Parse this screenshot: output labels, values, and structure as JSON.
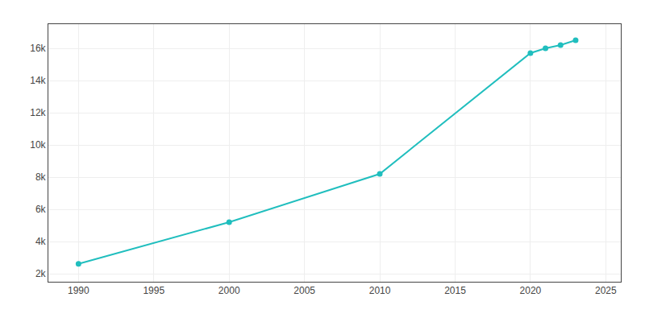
{
  "chart_data": {
    "type": "line",
    "x": [
      1990,
      2000,
      2010,
      2020,
      2021,
      2022,
      2023
    ],
    "values": [
      2611,
      5200,
      8200,
      15700,
      16000,
      16200,
      16500
    ],
    "color": "#20BEBE",
    "marker": "circle",
    "xlim": [
      1988,
      2026
    ],
    "ylim": [
      1500,
      17500
    ],
    "xticks": [
      1990,
      1995,
      2000,
      2005,
      2010,
      2015,
      2020,
      2025
    ],
    "yticks": [
      {
        "value": 2000,
        "label": "2k"
      },
      {
        "value": 4000,
        "label": "4k"
      },
      {
        "value": 6000,
        "label": "6k"
      },
      {
        "value": 8000,
        "label": "8k"
      },
      {
        "value": 10000,
        "label": "10k"
      },
      {
        "value": 12000,
        "label": "12k"
      },
      {
        "value": 14000,
        "label": "14k"
      },
      {
        "value": 16000,
        "label": "16k"
      }
    ],
    "grid": true
  }
}
